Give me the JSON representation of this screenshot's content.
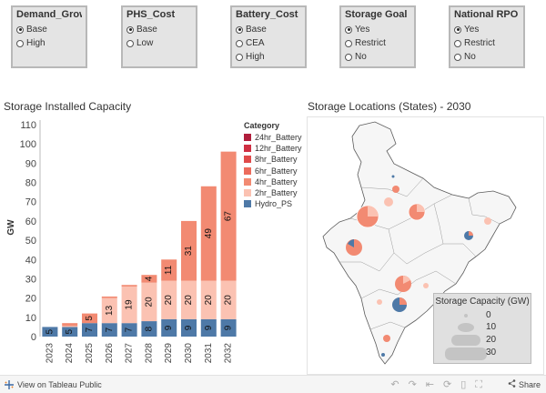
{
  "filters": [
    {
      "title": "Demand_Grow...",
      "options": [
        {
          "label": "Base",
          "selected": true
        },
        {
          "label": "High",
          "selected": false
        }
      ]
    },
    {
      "title": "PHS_Cost",
      "options": [
        {
          "label": "Base",
          "selected": true
        },
        {
          "label": "Low",
          "selected": false
        }
      ]
    },
    {
      "title": "Battery_Cost",
      "options": [
        {
          "label": "Base",
          "selected": true
        },
        {
          "label": "CEA",
          "selected": false
        },
        {
          "label": "High",
          "selected": false
        }
      ]
    },
    {
      "title": "Storage Goal",
      "options": [
        {
          "label": "Yes",
          "selected": true
        },
        {
          "label": "Restrict",
          "selected": false
        },
        {
          "label": "No",
          "selected": false
        }
      ]
    },
    {
      "title": "National RPO",
      "options": [
        {
          "label": "Yes",
          "selected": true
        },
        {
          "label": "Restrict",
          "selected": false
        },
        {
          "label": "No",
          "selected": false
        }
      ]
    }
  ],
  "left_sheet_title": "Storage Installed Capacity",
  "right_sheet_title": "Storage Locations (States) - 2030",
  "legend": {
    "title": "Category",
    "items": [
      {
        "label": "24hr_Battery",
        "color": "#b01e3c"
      },
      {
        "label": "12hr_Battery",
        "color": "#cf2f43"
      },
      {
        "label": "8hr_Battery",
        "color": "#e04a4a"
      },
      {
        "label": "6hr_Battery",
        "color": "#ec6b5c"
      },
      {
        "label": "4hr_Battery",
        "color": "#f28a72"
      },
      {
        "label": "2hr_Battery",
        "color": "#fbc2b2"
      },
      {
        "label": "Hydro_PS",
        "color": "#4e79a7"
      }
    ]
  },
  "chart_data": {
    "type": "bar",
    "stacked": true,
    "ylabel": "GW",
    "ylim": [
      0,
      110
    ],
    "yticks": [
      0,
      10,
      20,
      30,
      40,
      50,
      60,
      70,
      80,
      90,
      100,
      110
    ],
    "categories": [
      "2023",
      "2024",
      "2025",
      "2026",
      "2027",
      "2028",
      "2029",
      "2030",
      "2031",
      "2032"
    ],
    "series": [
      {
        "name": "Hydro_PS",
        "color": "#4e79a7",
        "values": [
          5,
          5,
          7,
          7,
          7,
          8,
          9,
          9,
          9,
          9
        ],
        "labels": [
          "5",
          "5",
          "7",
          "7",
          "7",
          "8",
          "9",
          "9",
          "9",
          "9"
        ]
      },
      {
        "name": "2hr_Battery",
        "color": "#fbc2b2",
        "values": [
          0,
          0.5,
          0,
          13,
          19,
          20,
          20,
          20,
          20,
          20
        ],
        "labels": [
          "",
          "",
          "",
          "13",
          "19",
          "20",
          "20",
          "20",
          "20",
          "20"
        ]
      },
      {
        "name": "4hr_Battery",
        "color": "#f28a72",
        "values": [
          0,
          1.5,
          5,
          0.8,
          0.8,
          4,
          11,
          31,
          49,
          67
        ],
        "labels": [
          "",
          "",
          "5",
          "",
          "",
          "4",
          "11",
          "31",
          "49",
          "67"
        ]
      }
    ]
  },
  "map_legend": {
    "title": "Storage Capacity (GW)",
    "values": [
      "0",
      "10",
      "20",
      "30"
    ]
  },
  "footer": {
    "link": "View on Tableau Public",
    "share": "Share"
  }
}
